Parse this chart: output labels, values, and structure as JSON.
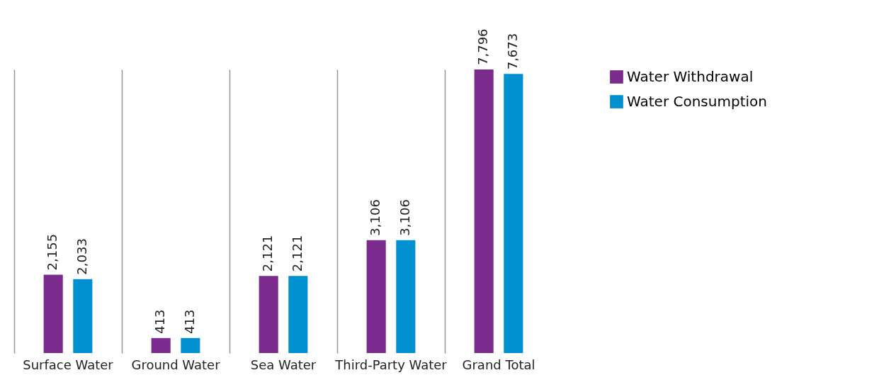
{
  "chart_data": {
    "type": "bar",
    "categories": [
      "Surface Water",
      "Ground Water",
      "Sea Water",
      "Third-Party Water",
      "Grand Total"
    ],
    "series": [
      {
        "name": "Water Withdrawal",
        "color": "#7b2a8e",
        "values": [
          2155,
          413,
          2121,
          3106,
          7796
        ],
        "value_labels": [
          "2,155",
          "413",
          "2,121",
          "3,106",
          "7,796"
        ]
      },
      {
        "name": "Water Consumption",
        "color": "#0090d0",
        "values": [
          2033,
          413,
          2121,
          3106,
          7673
        ],
        "value_labels": [
          "2,033",
          "413",
          "2,121",
          "3,106",
          "7,673"
        ]
      }
    ],
    "grid": "x",
    "legend": "right"
  }
}
